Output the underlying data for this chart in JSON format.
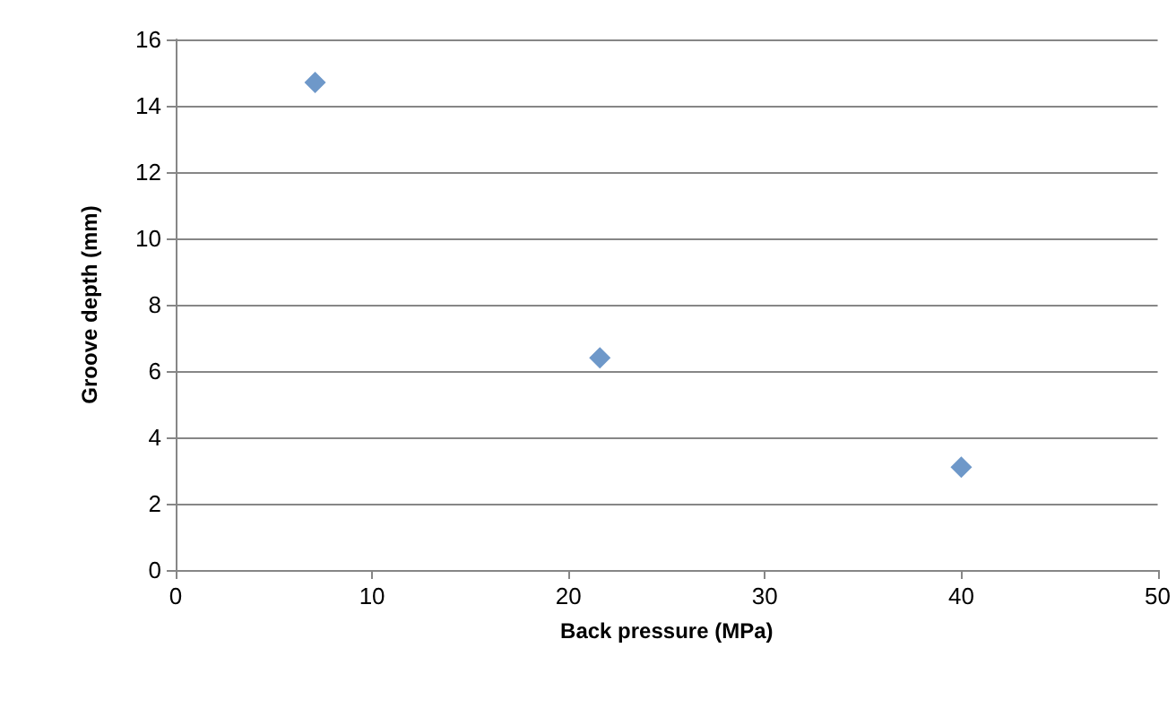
{
  "chart_data": {
    "type": "scatter",
    "xlabel": "Back pressure (MPa)",
    "ylabel": "Groove depth (mm)",
    "x": [
      7.1,
      21.6,
      40.0
    ],
    "values": [
      14.7,
      6.4,
      3.1
    ],
    "color": "#4a7ebb",
    "marker": "diamond",
    "grid": "y",
    "xlim": [
      0,
      50
    ],
    "xticks": [
      0,
      10,
      20,
      30,
      40,
      50
    ],
    "ylim": [
      0,
      16
    ],
    "yticks": [
      0,
      2,
      4,
      6,
      8,
      10,
      12,
      14,
      16
    ]
  }
}
